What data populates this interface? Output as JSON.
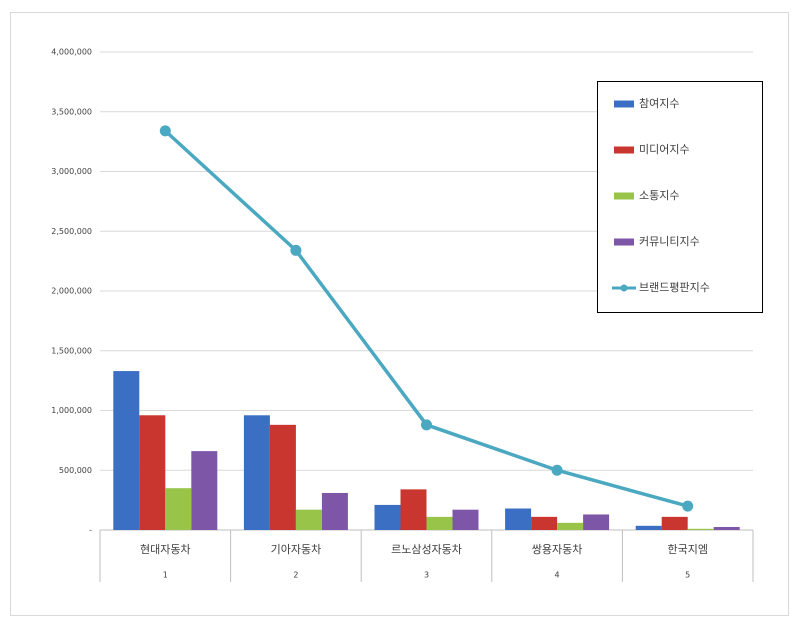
{
  "chart_data": {
    "type": "bar",
    "categories": [
      "현대자동차",
      "기아자동차",
      "르노삼성자동차",
      "쌍용자동차",
      "한국지엠"
    ],
    "category_numbers": [
      "1",
      "2",
      "3",
      "4",
      "5"
    ],
    "series": [
      {
        "name": "참여지수",
        "color": "#3a6fc4",
        "values": [
          1330000,
          960000,
          210000,
          180000,
          35000
        ]
      },
      {
        "name": "미디어지수",
        "color": "#c9352f",
        "values": [
          960000,
          880000,
          340000,
          110000,
          110000
        ]
      },
      {
        "name": "소통지수",
        "color": "#98c44a",
        "values": [
          350000,
          170000,
          110000,
          60000,
          10000
        ]
      },
      {
        "name": "커뮤니티지수",
        "color": "#7d56a8",
        "values": [
          660000,
          310000,
          170000,
          130000,
          25000
        ]
      },
      {
        "name": "브랜드평판지수",
        "color": "#4aa8c0",
        "type": "line",
        "values": [
          3340000,
          2340000,
          880000,
          500000,
          200000
        ]
      }
    ],
    "ylim": [
      0,
      4000000
    ],
    "yticks": [
      {
        "value": 0,
        "label": "-"
      },
      {
        "value": 500000,
        "label": "500,000"
      },
      {
        "value": 1000000,
        "label": "1,000,000"
      },
      {
        "value": 1500000,
        "label": "1,500,000"
      },
      {
        "value": 2000000,
        "label": "2,000,000"
      },
      {
        "value": 2500000,
        "label": "2,500,000"
      },
      {
        "value": 3000000,
        "label": "3,000,000"
      },
      {
        "value": 3500000,
        "label": "3,500,000"
      },
      {
        "value": 4000000,
        "label": "4,000,000"
      }
    ],
    "grid": true,
    "legend": "upper-right"
  }
}
